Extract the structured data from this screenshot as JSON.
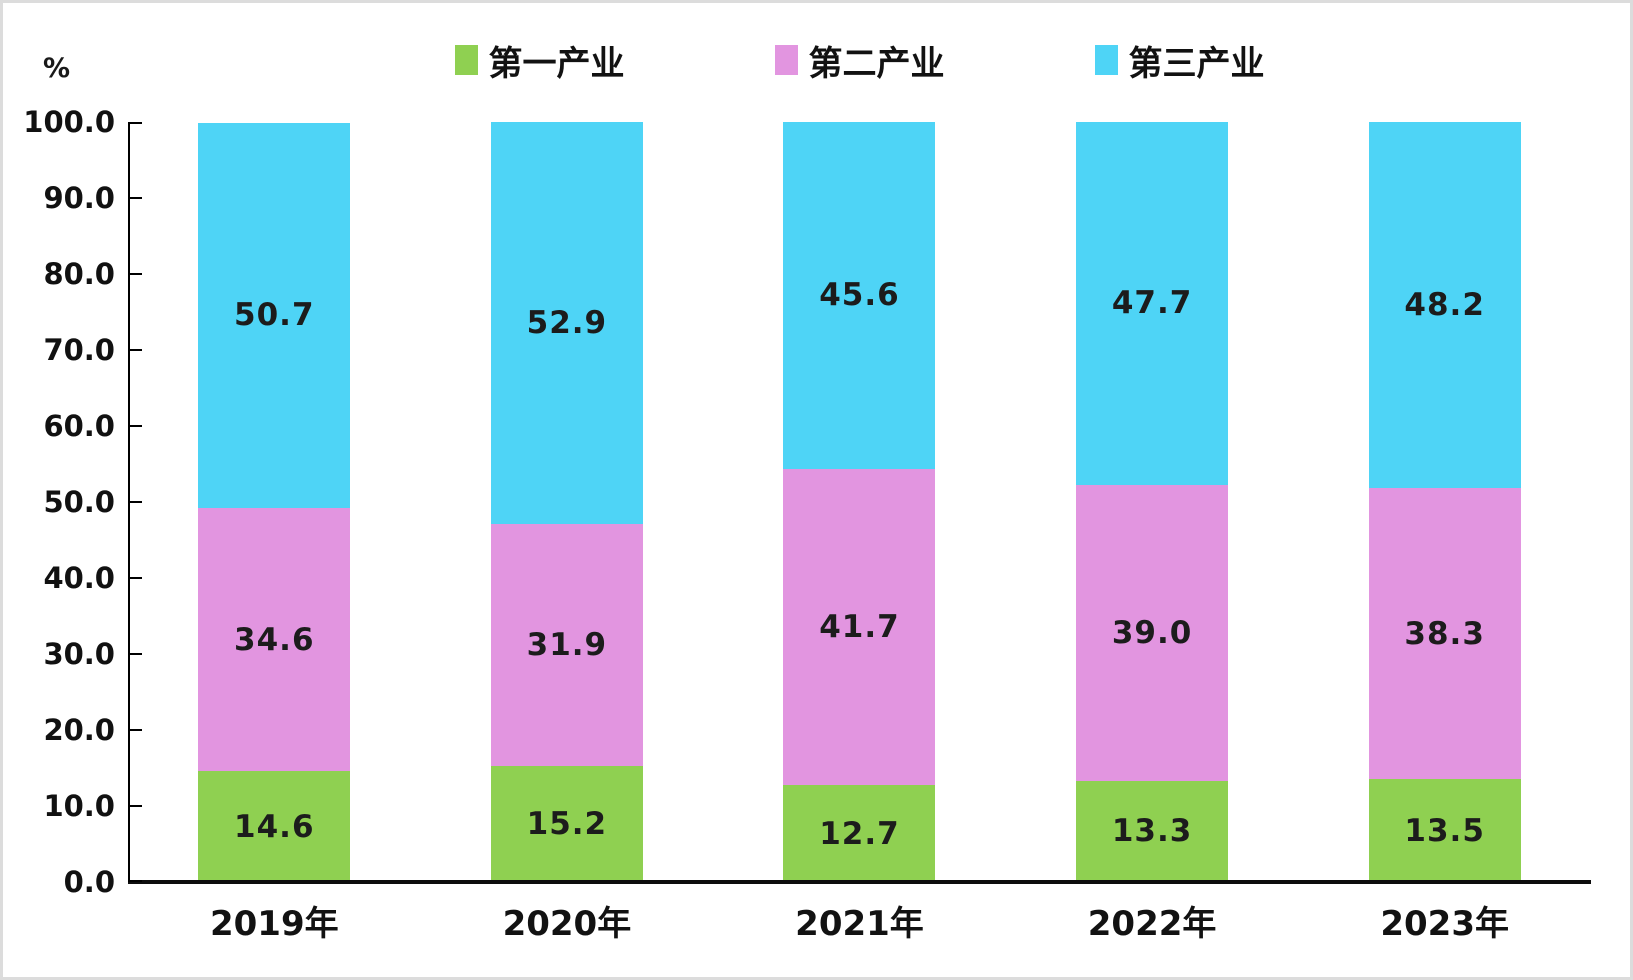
{
  "chart_data": {
    "type": "bar",
    "stacked": true,
    "title": "",
    "ylabel": "%",
    "xlabel": "",
    "ylim": [
      0,
      100
    ],
    "ytick_step": 10,
    "ytick_labels": [
      "0.0",
      "10.0",
      "20.0",
      "30.0",
      "40.0",
      "50.0",
      "60.0",
      "70.0",
      "80.0",
      "90.0",
      "100.0"
    ],
    "grid": false,
    "legend_position": "top-center",
    "categories": [
      "2019年",
      "2020年",
      "2021年",
      "2022年",
      "2023年"
    ],
    "series": [
      {
        "name": "第一产业",
        "color": "#8FD051",
        "values": [
          14.6,
          15.2,
          12.7,
          13.3,
          13.5
        ]
      },
      {
        "name": "第二产业",
        "color": "#E295E0",
        "values": [
          34.6,
          31.9,
          41.7,
          39.0,
          38.3
        ]
      },
      {
        "name": "第三产业",
        "color": "#4ED4F6",
        "values": [
          50.7,
          52.9,
          45.6,
          47.7,
          48.2
        ]
      }
    ],
    "colors": {
      "axis": "#000000",
      "label_text": "#1C1C1C",
      "frame_border": "#DCDCDC",
      "background": "#FFFFFF"
    }
  }
}
